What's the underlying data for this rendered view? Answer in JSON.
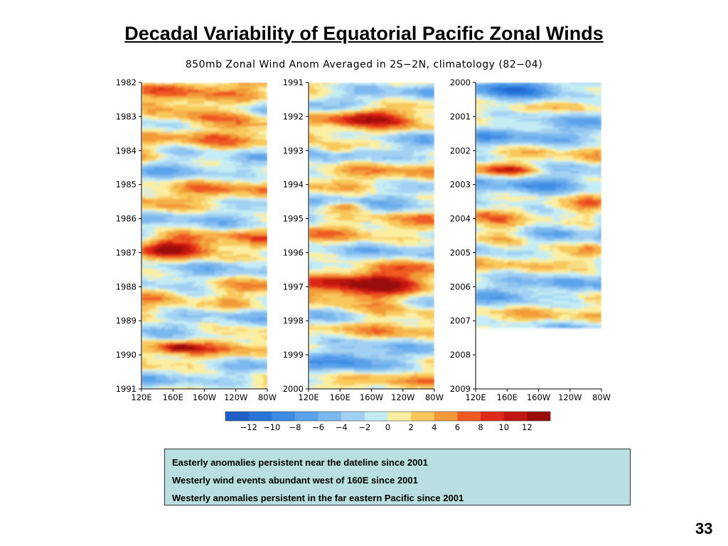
{
  "slide": {
    "title": "Decadal Variability of Equatorial Pacific Zonal Winds",
    "page_number": "33"
  },
  "notes": [
    "Easterly anomalies persistent near the dateline since 2001",
    "Westerly wind events abundant west of 160E since 2001",
    "Westerly anomalies persistent in the far eastern Pacific since 2001"
  ],
  "chart_data": {
    "type": "heatmap",
    "title": "850mb Zonal Wind Anom Averaged in 2S−2N, climatology (82−04)",
    "x_tick_labels": [
      "120E",
      "160E",
      "160W",
      "120W",
      "80W"
    ],
    "panels": [
      {
        "y_tick_labels": [
          "1982",
          "1983",
          "1984",
          "1985",
          "1986",
          "1987",
          "1988",
          "1989",
          "1990",
          "1991"
        ],
        "data_end_fraction": 1.0
      },
      {
        "y_tick_labels": [
          "1991",
          "1992",
          "1993",
          "1994",
          "1995",
          "1996",
          "1997",
          "1998",
          "1999",
          "2000"
        ],
        "data_end_fraction": 1.0
      },
      {
        "y_tick_labels": [
          "2000",
          "2001",
          "2002",
          "2003",
          "2004",
          "2005",
          "2006",
          "2007",
          "2008",
          "2009"
        ],
        "data_end_fraction": 0.8
      }
    ],
    "colorbar": {
      "tick_labels": [
        "−12",
        "−10",
        "−8",
        "−6",
        "−4",
        "−2",
        "0",
        "2",
        "4",
        "6",
        "8",
        "10",
        "12"
      ],
      "colors": [
        "#1f5ec8",
        "#2874d8",
        "#3c8ce4",
        "#5aa2ea",
        "#7cb8ee",
        "#a2d0f2",
        "#c4ecf4",
        "#fbeea0",
        "#f8c85a",
        "#f29a38",
        "#ee5a22",
        "#de2818",
        "#c01810",
        "#9a0c08"
      ]
    },
    "features": [
      {
        "panel": 0,
        "t0": 0.05,
        "t1": 0.15,
        "x0": 0.15,
        "x1": 0.85,
        "value": 8
      },
      {
        "panel": 0,
        "t0": 0.2,
        "t1": 0.26,
        "x0": 0.15,
        "x1": 0.5,
        "value": -4
      },
      {
        "panel": 0,
        "t0": 0.5,
        "t1": 0.57,
        "x0": 0.05,
        "x1": 0.55,
        "value": 8
      },
      {
        "panel": 0,
        "t0": 0.67,
        "t1": 0.73,
        "x0": 0.2,
        "x1": 0.7,
        "value": -4
      },
      {
        "panel": 0,
        "t0": 0.85,
        "t1": 0.88,
        "x0": 0.15,
        "x1": 0.45,
        "value": 9
      },
      {
        "panel": 1,
        "t0": 0.08,
        "t1": 0.14,
        "x0": 0.15,
        "x1": 0.75,
        "value": 9
      },
      {
        "panel": 1,
        "t0": 0.2,
        "t1": 0.24,
        "x0": 0.05,
        "x1": 0.35,
        "value": 8
      },
      {
        "panel": 1,
        "t0": 0.39,
        "t1": 0.42,
        "x0": 0.15,
        "x1": 0.45,
        "value": 8
      },
      {
        "panel": 1,
        "t0": 0.6,
        "t1": 0.75,
        "x0": 0.05,
        "x1": 0.95,
        "value": 10
      },
      {
        "panel": 1,
        "t0": 0.8,
        "t1": 0.96,
        "x0": 0.05,
        "x1": 0.55,
        "value": -5
      },
      {
        "panel": 2,
        "t0": 0.0,
        "t1": 0.08,
        "x0": 0.1,
        "x1": 0.7,
        "value": -6
      },
      {
        "panel": 2,
        "t0": 0.27,
        "t1": 0.3,
        "x0": 0.05,
        "x1": 0.5,
        "value": 8
      },
      {
        "panel": 2,
        "t0": 0.45,
        "t1": 0.55,
        "x0": 0.05,
        "x1": 0.5,
        "value": 8
      },
      {
        "panel": 2,
        "t0": 0.3,
        "t1": 0.78,
        "x0": 0.8,
        "x1": 1.0,
        "value": 3
      }
    ]
  }
}
